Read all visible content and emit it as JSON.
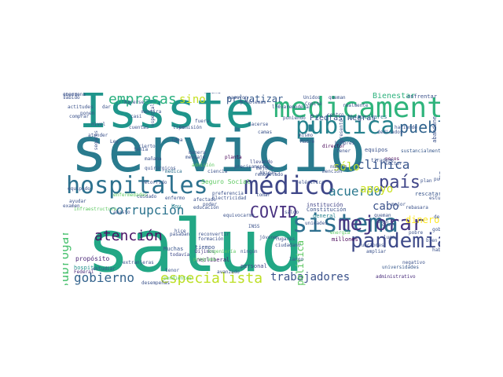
{
  "cloud": {
    "words": [
      {
        "text": "salud",
        "color": "#22a785",
        "v": false
      },
      {
        "text": "servicio",
        "color": "#2a7b8e",
        "v": false
      },
      {
        "text": "Issste",
        "color": "#1f958b",
        "v": false
      },
      {
        "text": "medicamentos",
        "color": "#2fb47c",
        "v": false
      },
      {
        "text": "pública",
        "color": "#26828e",
        "v": false
      },
      {
        "text": "hospitales",
        "color": "#2d718e",
        "v": false
      },
      {
        "text": "médico",
        "color": "#3f4788",
        "v": false
      },
      {
        "text": "sistema",
        "color": "#2e6f8e",
        "v": false
      },
      {
        "text": "pueblo",
        "color": "#32648e",
        "v": false
      },
      {
        "text": "pandemia",
        "color": "#3e4a89",
        "v": false
      },
      {
        "text": "mejorar",
        "color": "#453581",
        "v": false
      },
      {
        "text": "país",
        "color": "#404688",
        "v": false
      },
      {
        "text": "COVID",
        "color": "#462f7e",
        "v": false
      },
      {
        "text": "empresas",
        "color": "#2ab07f",
        "v": false
      },
      {
        "text": "especialista",
        "color": "#bddf26",
        "v": false
      },
      {
        "text": "trabajadores",
        "color": "#3b528b",
        "v": false
      },
      {
        "text": "gobierno",
        "color": "#33638d",
        "v": false
      },
      {
        "text": "atención",
        "color": "#471164",
        "v": false
      },
      {
        "text": "corrupción",
        "color": "#2c738e",
        "v": false
      },
      {
        "text": "subrogar",
        "color": "#48c16e",
        "v": true
      },
      {
        "text": "acuerdo",
        "color": "#2a788e",
        "v": false
      },
      {
        "text": "apoyo",
        "color": "#cae11f",
        "v": false
      },
      {
        "text": "clínica",
        "color": "#39568c",
        "v": false
      },
      {
        "text": "cabo",
        "color": "#3b528b",
        "v": false
      },
      {
        "text": "dinero",
        "color": "#fde725",
        "v": false
      },
      {
        "text": "sólo",
        "color": "#bddf26",
        "v": false
      },
      {
        "text": "sino",
        "color": "#c5e021",
        "v": false
      },
      {
        "text": "privatizar",
        "color": "#375a8c",
        "v": false
      },
      {
        "text": "presupuesto",
        "color": "#31688e",
        "v": false
      },
      {
        "text": "Secretaría",
        "color": "#1f988b",
        "v": true
      },
      {
        "text": "política",
        "color": "#5ec962",
        "v": true
      },
      {
        "text": "Bienestar",
        "color": "#2db27d",
        "v": false
      },
      {
        "text": "Piedras Negras",
        "color": "#3b528b",
        "v": false
      },
      {
        "text": "particulares",
        "color": "#2a788e",
        "v": false
      },
      {
        "text": "director",
        "color": "#440154",
        "v": false
      },
      {
        "text": "Seguro Social",
        "color": "#5ec962",
        "v": false
      },
      {
        "text": "hospital",
        "color": "#21918c",
        "v": false
      },
      {
        "text": "institución",
        "color": "#414487",
        "v": false
      },
      {
        "text": "Constitución",
        "color": "#3b528b",
        "v": false
      },
      {
        "text": "general",
        "color": "#26828e",
        "v": false
      },
      {
        "text": "Federal",
        "color": "#482878",
        "v": false
      },
      {
        "text": "propósito",
        "color": "#482475",
        "v": false
      },
      {
        "text": "hoy",
        "color": "#26828e",
        "v": false
      },
      {
        "text": "Muchas",
        "color": "#39568c",
        "v": false
      },
      {
        "text": "todavía",
        "color": "#3e4989",
        "v": false
      },
      {
        "text": "Dijimos",
        "color": "#453781",
        "v": false
      },
      {
        "text": "neoliberal",
        "color": "#481f70",
        "v": false
      },
      {
        "text": "tiempo",
        "color": "#3b528b",
        "v": false
      },
      {
        "text": "personal",
        "color": "#404387",
        "v": false
      },
      {
        "text": "planta",
        "color": "#440154",
        "v": false
      },
      {
        "text": "llevando",
        "color": "#3e4989",
        "v": false
      },
      {
        "text": "médica",
        "color": "#2d708e",
        "v": false
      },
      {
        "text": "equipos",
        "color": "#3b528b",
        "v": false
      },
      {
        "text": "mejore",
        "color": "#3b528b",
        "v": false
      },
      {
        "text": "Amigas",
        "color": "#3b528b",
        "v": false
      },
      {
        "text": "sector",
        "color": "#3b528b",
        "v": false
      },
      {
        "text": "pocos",
        "color": "#440154",
        "v": false
      },
      {
        "text": "plan",
        "color": "#3b528b",
        "v": false
      },
      {
        "text": "energía",
        "color": "#5ec962",
        "v": false
      },
      {
        "text": "millones",
        "color": "#440154",
        "v": false
      },
      {
        "text": "universidades",
        "color": "#38598c",
        "v": false
      },
      {
        "text": "administrativo",
        "color": "#472a7a",
        "v": false
      },
      {
        "text": "rescatar",
        "color": "#39568c",
        "v": false
      },
      {
        "text": "sustancialmente",
        "color": "#38598c",
        "v": false
      },
      {
        "text": "afectado",
        "color": "#3b528b",
        "v": false
      },
      {
        "text": "educación",
        "color": "#3b528b",
        "v": false
      },
      {
        "text": "recorrido",
        "color": "#3b528b",
        "v": false
      },
      {
        "text": "enfermo",
        "color": "#3b528b",
        "v": false
      },
      {
        "text": "recuperamos",
        "color": "#2a788e",
        "v": true
      },
      {
        "text": "nadie",
        "color": "#3b528b",
        "v": false
      },
      {
        "text": "precisamente",
        "color": "#3b528b",
        "v": false
      },
      {
        "text": "hecho",
        "color": "#3b528b",
        "v": false
      },
      {
        "text": "obra",
        "color": "#3b528b",
        "v": false
      },
      {
        "text": "enfrentar",
        "color": "#3b528b",
        "v": false
      },
      {
        "text": "Comisión",
        "color": "#3b528b",
        "v": false
      },
      {
        "text": "hice",
        "color": "#3b528b",
        "v": false
      },
      {
        "text": "INSS",
        "color": "#3b528b",
        "v": false
      },
      {
        "text": "poder",
        "color": "#3b528b",
        "v": false
      },
      {
        "text": "gobernador",
        "color": "#3b528b",
        "v": false
      },
      {
        "text": "derecho",
        "color": "#3b528b",
        "v": false
      },
      {
        "text": "gusto",
        "color": "#3b528b",
        "v": false
      },
      {
        "text": "bien",
        "color": "#3b528b",
        "v": false
      },
      {
        "text": "carreteras",
        "color": "#3b528b",
        "v": false
      },
      {
        "text": "decidido",
        "color": "#5ec962",
        "v": false
      },
      {
        "text": "enfrentando",
        "color": "#3b528b",
        "v": false
      },
      {
        "text": "estudiar",
        "color": "#3b528b",
        "v": false
      },
      {
        "text": "pendientes",
        "color": "#5ec962",
        "v": false
      },
      {
        "text": "lugares",
        "color": "#3b528b",
        "v": false
      },
      {
        "text": "ciudadano",
        "color": "#3b528b",
        "v": false
      },
      {
        "text": "ningún",
        "color": "#3b528b",
        "v": false
      },
      {
        "text": "funciones",
        "color": "#3b528b",
        "v": false
      },
      {
        "text": "ampliar",
        "color": "#3b528b",
        "v": false
      },
      {
        "text": "abasto",
        "color": "#3b528b",
        "v": false
      },
      {
        "text": "infraestructura",
        "color": "#5ec962",
        "v": false
      },
      {
        "text": "eléctrica",
        "color": "#3b528b",
        "v": false
      },
      {
        "text": "Electricidad",
        "color": "#3b528b",
        "v": false
      },
      {
        "text": "preferencia",
        "color": "#3b528b",
        "v": false
      },
      {
        "text": "admisión",
        "color": "#5ec962",
        "v": false
      },
      {
        "text": "mensaje",
        "color": "#3b528b",
        "v": false
      },
      {
        "text": "manera",
        "color": "#3b528b",
        "v": false
      },
      {
        "text": "mismo",
        "color": "#3b528b",
        "v": false
      },
      {
        "text": "Madre",
        "color": "#3b528b",
        "v": false
      },
      {
        "text": "tiradero",
        "color": "#3b528b",
        "v": false
      },
      {
        "text": "remodelado",
        "color": "#3b528b",
        "v": false
      },
      {
        "text": "mención",
        "color": "#3b528b",
        "v": false
      },
      {
        "text": "número",
        "color": "#3b528b",
        "v": false
      },
      {
        "text": "interés",
        "color": "#3b528b",
        "v": false
      },
      {
        "text": "hacerlo",
        "color": "#3b528b",
        "v": false
      },
      {
        "text": "realidad",
        "color": "#3b528b",
        "v": false
      },
      {
        "text": "tipo",
        "color": "#3b528b",
        "v": false
      },
      {
        "text": "nivel",
        "color": "#3b528b",
        "v": false
      },
      {
        "text": "mañana",
        "color": "#3b528b",
        "v": false
      },
      {
        "text": "sido",
        "color": "#3b528b",
        "v": false
      },
      {
        "text": "largo",
        "color": "#3b528b",
        "v": false
      },
      {
        "text": "mal",
        "color": "#3b528b",
        "v": false
      },
      {
        "text": "había",
        "color": "#3b528b",
        "v": false
      },
      {
        "text": "pobre",
        "color": "#3b528b",
        "v": false
      },
      {
        "text": "buen",
        "color": "#3b528b",
        "v": false
      },
      {
        "text": "saldo",
        "color": "#3b528b",
        "v": false
      },
      {
        "text": "tenor",
        "color": "#3b528b",
        "v": false
      },
      {
        "text": "desempeñas",
        "color": "#3b528b",
        "v": false
      },
      {
        "text": "extranjeras",
        "color": "#3b528b",
        "v": false
      },
      {
        "text": "ingeniería",
        "color": "#5ec962",
        "v": false
      },
      {
        "text": "formación",
        "color": "#3b528b",
        "v": false
      },
      {
        "text": "reconvertir",
        "color": "#3b528b",
        "v": false
      },
      {
        "text": "programa",
        "color": "#5ec962",
        "v": false
      },
      {
        "text": "avanzado",
        "color": "#3b528b",
        "v": false
      },
      {
        "text": "equivocarme",
        "color": "#3b528b",
        "v": false
      },
      {
        "text": "jóvenes",
        "color": "#3b528b",
        "v": false
      },
      {
        "text": "incesiones",
        "color": "#3b528b",
        "v": false
      },
      {
        "text": "abandonado",
        "color": "#3b528b",
        "v": false
      },
      {
        "text": "examen",
        "color": "#3b528b",
        "v": false
      },
      {
        "text": "ayudar",
        "color": "#3b528b",
        "v": false
      },
      {
        "text": "equipado",
        "color": "#3b528b",
        "v": false
      },
      {
        "text": "enfermedades",
        "color": "#5ec962",
        "v": false
      },
      {
        "text": "quirúrgicos",
        "color": "#3b528b",
        "v": false
      },
      {
        "text": "sabido",
        "color": "#3b528b",
        "v": false
      },
      {
        "text": "mentira",
        "color": "#3b528b",
        "v": false
      },
      {
        "text": "casi",
        "color": "#3b528b",
        "v": false
      },
      {
        "text": "Ley",
        "color": "#3b528b",
        "v": false
      },
      {
        "text": "ir",
        "color": "#3b528b",
        "v": false
      },
      {
        "text": "sabemos",
        "color": "#3b528b",
        "v": false
      },
      {
        "text": "hombres",
        "color": "#3b528b",
        "v": false
      },
      {
        "text": "tener",
        "color": "#3b528b",
        "v": false
      },
      {
        "text": "lugar",
        "color": "#3b528b",
        "v": false
      },
      {
        "text": "negativo",
        "color": "#3b528b",
        "v": false
      },
      {
        "text": "puentes",
        "color": "#3b528b",
        "v": false
      },
      {
        "text": "estudiara",
        "color": "#3b528b",
        "v": false
      },
      {
        "text": "rebasara",
        "color": "#3b528b",
        "v": false
      },
      {
        "text": "abandone",
        "color": "#3b528b",
        "v": true
      },
      {
        "text": "cuidado",
        "color": "#3b528b",
        "v": false
      },
      {
        "text": "pasaban",
        "color": "#3b528b",
        "v": false
      },
      {
        "text": "unidades",
        "color": "#3b528b",
        "v": false
      },
      {
        "text": "queman",
        "color": "#3b528b",
        "v": false
      },
      {
        "text": "Unidos",
        "color": "#3b528b",
        "v": false
      },
      {
        "text": "Comité",
        "color": "#3b528b",
        "v": false
      },
      {
        "text": "ciencia",
        "color": "#3b528b",
        "v": false
      },
      {
        "text": "tomar",
        "color": "#3b528b",
        "v": false
      },
      {
        "text": "llevar",
        "color": "#3b528b",
        "v": false
      },
      {
        "text": "remodelar",
        "color": "#3b528b",
        "v": false
      },
      {
        "text": "poniendo",
        "color": "#3b528b",
        "v": false
      },
      {
        "text": "camas",
        "color": "#3b528b",
        "v": false
      },
      {
        "text": "centro",
        "color": "#3b528b",
        "v": false
      },
      {
        "text": "presentó",
        "color": "#3b528b",
        "v": true
      },
      {
        "text": "dedicados",
        "color": "#3b528b",
        "v": false
      },
      {
        "text": "haciendo",
        "color": "#3b528b",
        "v": false
      },
      {
        "text": "realmente",
        "color": "#3b528b",
        "v": false
      },
      {
        "text": "hacerse",
        "color": "#3b528b",
        "v": false
      },
      {
        "text": "especial",
        "color": "#3b528b",
        "v": true
      },
      {
        "text": "seguros",
        "color": "#3b528b",
        "v": true
      },
      {
        "text": "atender",
        "color": "#3b528b",
        "v": false
      },
      {
        "text": "actitudes",
        "color": "#3b528b",
        "v": false
      },
      {
        "text": "dar",
        "color": "#3b528b",
        "v": false
      },
      {
        "text": "cierto",
        "color": "#3b528b",
        "v": false
      },
      {
        "text": "tenía",
        "color": "#3b528b",
        "v": false
      },
      {
        "text": "pasaron",
        "color": "#3b528b",
        "v": false
      },
      {
        "text": "problemas",
        "color": "#3b528b",
        "v": false
      },
      {
        "text": "comprar",
        "color": "#3b528b",
        "v": false
      },
      {
        "text": "ponen",
        "color": "#3b528b",
        "v": false
      },
      {
        "text": "queman",
        "color": "#3b528b",
        "v": false
      },
      {
        "text": "cuentas",
        "color": "#3b528b",
        "v": false
      },
      {
        "text": "fuera",
        "color": "#3b528b",
        "v": false
      },
      {
        "text": "hacerse",
        "color": "#3b528b",
        "v": false
      },
      {
        "text": "idea",
        "color": "#3b528b",
        "v": false
      },
      {
        "text": "mejor",
        "color": "#3b528b",
        "v": false
      },
      {
        "text": "quería",
        "color": "#3b528b",
        "v": false
      },
      {
        "text": "abandona",
        "color": "#3b528b",
        "v": false
      }
    ]
  }
}
